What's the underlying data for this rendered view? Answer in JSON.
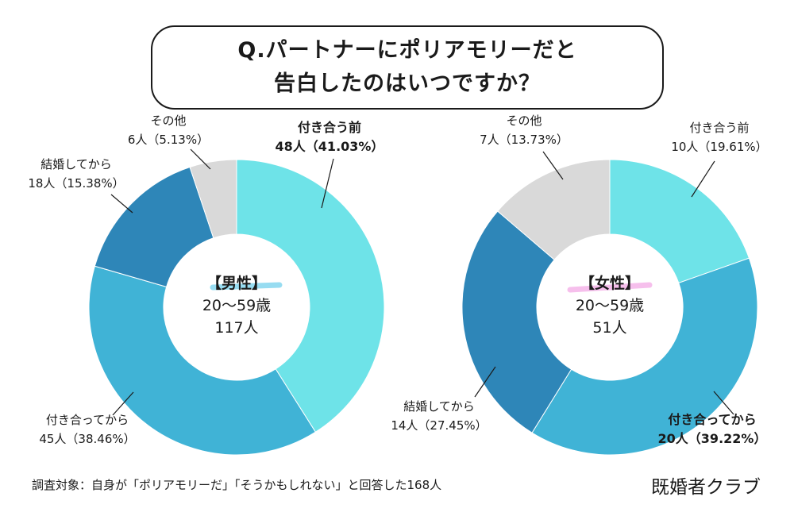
{
  "title": {
    "line1": "Q.パートナーにポリアモリーだと",
    "line2": "告白したのはいつですか？"
  },
  "footnote": "調査対象：自身が「ポリアモリーだ」「そうかもしれない」と回答した168人",
  "brand": "既婚者クラブ",
  "colors": {
    "付き合う前": "#6ee3e8",
    "付き合ってから": "#40b3d6",
    "結婚してから": "#2e86b8",
    "その他": "#d9d9d9",
    "male_highlight": "#8cd8f0",
    "female_highlight": "#f5b8ea"
  },
  "chart_data": [
    {
      "type": "pie",
      "donut": true,
      "center_label": [
        "【男性】",
        "20〜59歳",
        "117人"
      ],
      "categories": [
        "付き合う前",
        "付き合ってから",
        "結婚してから",
        "その他"
      ],
      "counts": [
        48,
        45,
        18,
        6
      ],
      "values": [
        41.03,
        38.46,
        15.38,
        5.13
      ],
      "labels": [
        [
          "付き合う前",
          "48人（41.03%）"
        ],
        [
          "付き合ってから",
          "45人（38.46%）"
        ],
        [
          "結婚してから",
          "18人（15.38%）"
        ],
        [
          "その他",
          "6人（5.13%）"
        ]
      ],
      "bold_category": "付き合う前"
    },
    {
      "type": "pie",
      "donut": true,
      "center_label": [
        "【女性】",
        "20〜59歳",
        "51人"
      ],
      "categories": [
        "付き合う前",
        "付き合ってから",
        "結婚してから",
        "その他"
      ],
      "counts": [
        10,
        20,
        14,
        7
      ],
      "values": [
        19.61,
        39.22,
        27.45,
        13.73
      ],
      "labels": [
        [
          "付き合う前",
          "10人（19.61%）"
        ],
        [
          "付き合ってから",
          "20人（39.22%）"
        ],
        [
          "結婚してから",
          "14人（27.45%）"
        ],
        [
          "その他",
          "7人（13.73%）"
        ]
      ],
      "bold_category": "付き合ってから"
    }
  ]
}
